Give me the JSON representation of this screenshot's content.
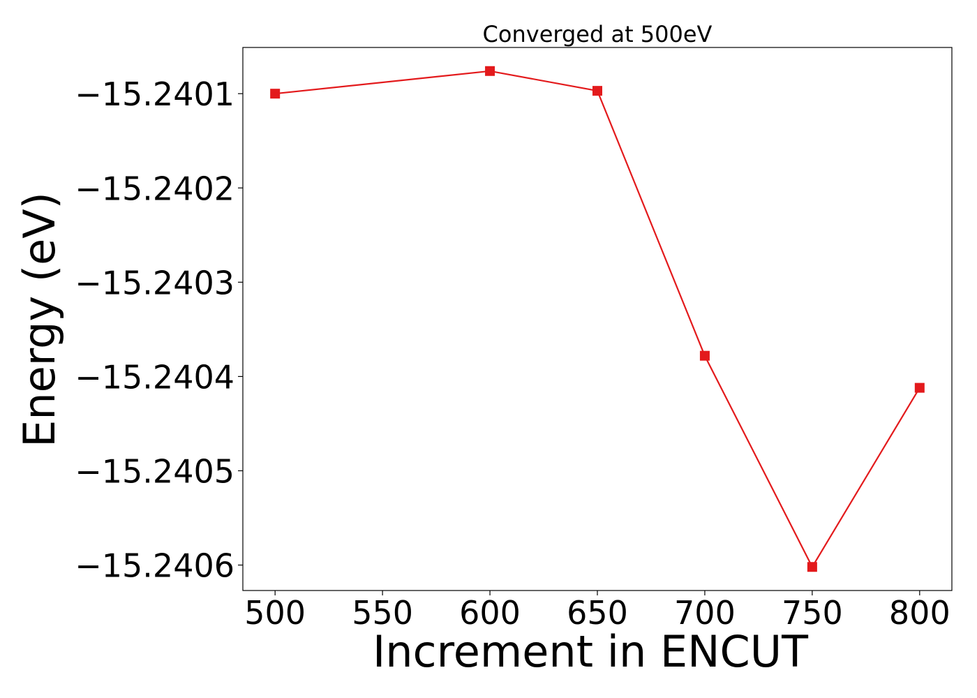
{
  "chart_data": {
    "type": "line",
    "title": "Converged at 500eV",
    "xlabel": "Increment in ENCUT",
    "ylabel": "Energy (eV)",
    "x": [
      500,
      600,
      650,
      700,
      750,
      800
    ],
    "series": [
      {
        "values": [
          -15.2401,
          -15.240076,
          -15.240097,
          -15.240378,
          -15.240602,
          -15.240412
        ],
        "color": "#e31a1c",
        "marker": "square"
      }
    ],
    "xticks": [
      500,
      550,
      600,
      650,
      700,
      750,
      800
    ],
    "xtick_labels": [
      "500",
      "550",
      "600",
      "650",
      "700",
      "750",
      "800"
    ],
    "yticks": [
      -15.2401,
      -15.2402,
      -15.2403,
      -15.2404,
      -15.2405,
      -15.2406
    ],
    "ytick_labels": [
      "−15.2401",
      "−15.2402",
      "−15.2403",
      "−15.2404",
      "−15.2405",
      "−15.2406"
    ],
    "xlim": [
      485,
      815
    ],
    "ylim": [
      -15.240627,
      -15.240051
    ],
    "grid": false,
    "legend": "none"
  }
}
